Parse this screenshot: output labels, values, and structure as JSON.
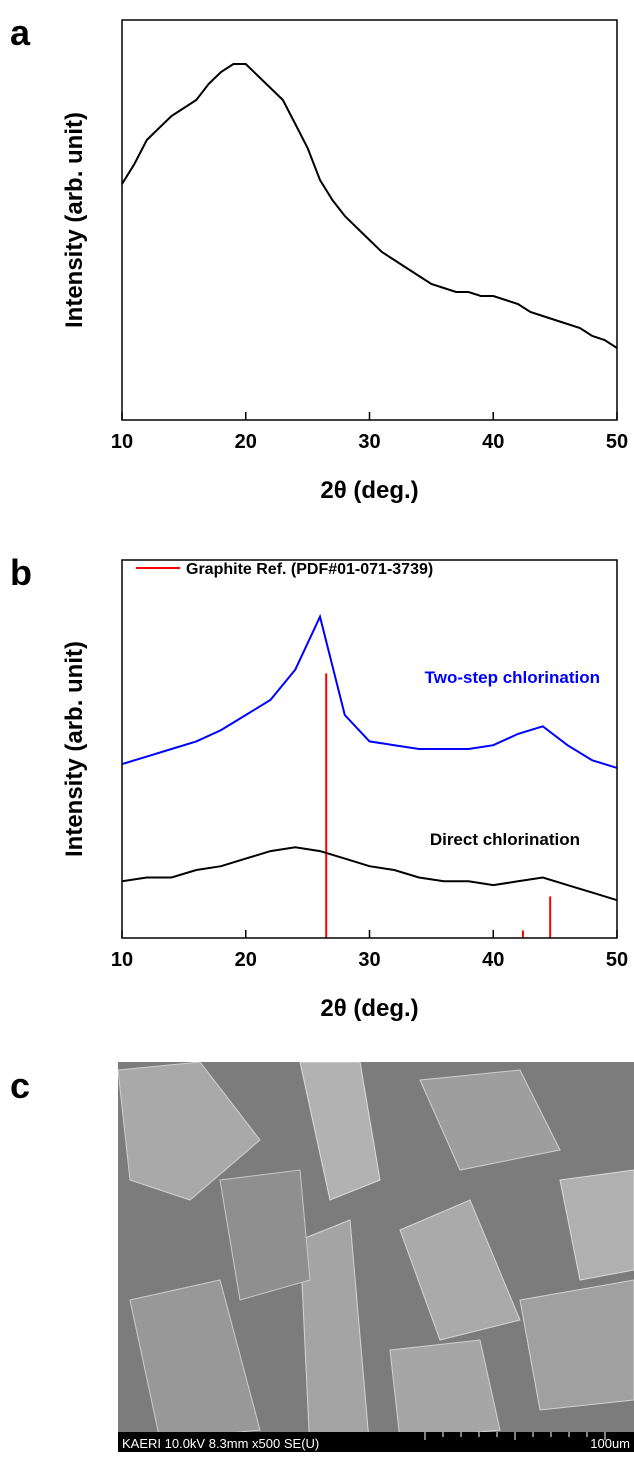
{
  "chart_data": [
    {
      "type": "line",
      "panel_label": "a",
      "xlabel": "2θ (deg.)",
      "ylabel": "Intensity (arb. unit)",
      "x": [
        10,
        11,
        12,
        13,
        14,
        15,
        16,
        17,
        18,
        19,
        20,
        21,
        22,
        23,
        24,
        25,
        26,
        27,
        28,
        29,
        30,
        31,
        32,
        33,
        34,
        35,
        36,
        37,
        38,
        39,
        40,
        41,
        42,
        43,
        44,
        45,
        46,
        47,
        48,
        49,
        50
      ],
      "values": [
        59,
        64,
        70,
        73,
        76,
        78,
        80,
        84,
        87,
        89,
        89,
        86,
        83,
        80,
        74,
        68,
        60,
        55,
        51,
        48,
        45,
        42,
        40,
        38,
        36,
        34,
        33,
        32,
        32,
        31,
        31,
        30,
        29,
        27,
        26,
        25,
        24,
        23,
        21,
        20,
        18
      ],
      "color": "#000000",
      "xlim": [
        10,
        50
      ],
      "ylim": [
        0,
        100
      ],
      "xticks": [
        10,
        20,
        30,
        40,
        50
      ]
    },
    {
      "type": "line",
      "panel_label": "b",
      "xlabel": "2θ (deg.)",
      "ylabel": "Intensity (arb. unit)",
      "x": [
        10,
        12,
        14,
        16,
        18,
        20,
        22,
        24,
        26,
        28,
        30,
        32,
        34,
        36,
        38,
        40,
        42,
        44,
        46,
        48,
        50
      ],
      "series": [
        {
          "name": "Graphite Ref. (PDF#01-071-3739)",
          "color": "#ff0000",
          "type": "stick",
          "x": [
            26.5,
            42.4,
            44.6
          ],
          "values": [
            70,
            2,
            11
          ]
        },
        {
          "name": "Two-step chlorination",
          "color": "#0000ff",
          "values": [
            46,
            48,
            50,
            52,
            55,
            59,
            63,
            71,
            85,
            59,
            52,
            51,
            50,
            50,
            50,
            51,
            54,
            56,
            51,
            47,
            45
          ]
        },
        {
          "name": "Direct chlorination",
          "color": "#000000",
          "values": [
            15,
            16,
            16,
            18,
            19,
            21,
            23,
            24,
            23,
            21,
            19,
            18,
            16,
            15,
            15,
            14,
            15,
            16,
            14,
            12,
            10
          ]
        }
      ],
      "xlim": [
        10,
        50
      ],
      "ylim": [
        0,
        100
      ],
      "xticks": [
        10,
        20,
        30,
        40,
        50
      ]
    }
  ],
  "sem_image": {
    "panel_label": "c",
    "info": "KAERI 10.0kV 8.3mm x500 SE(U)",
    "scale_bar": "100um"
  }
}
